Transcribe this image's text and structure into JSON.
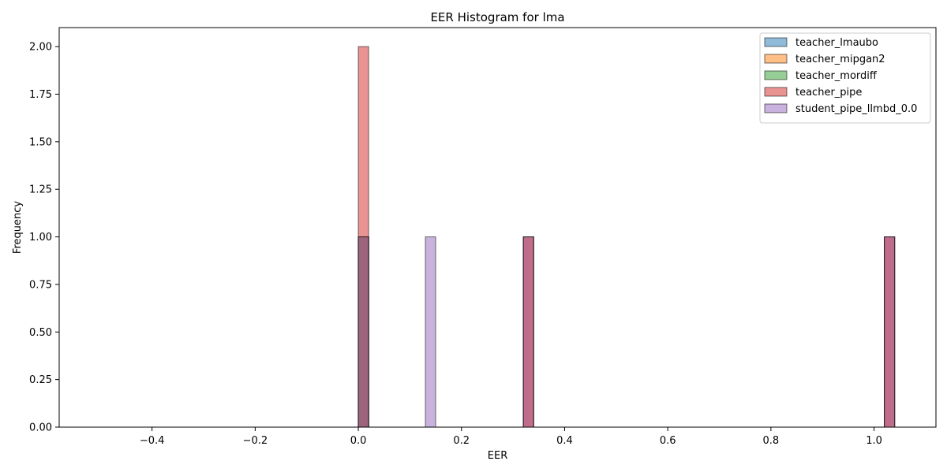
{
  "chart_data": {
    "type": "bar",
    "title": "EER Histogram for lma",
    "xlabel": "EER",
    "ylabel": "Frequency",
    "xlim": [
      -0.58,
      1.12
    ],
    "ylim": [
      0,
      2.1
    ],
    "xticks": [
      -0.4,
      -0.2,
      0.0,
      0.2,
      0.4,
      0.6,
      0.8,
      1.0
    ],
    "xtick_labels": [
      "−0.4",
      "−0.2",
      "0.0",
      "0.2",
      "0.4",
      "0.6",
      "0.8",
      "1.0"
    ],
    "yticks": [
      0,
      0.25,
      0.5,
      0.75,
      1.0,
      1.25,
      1.5,
      1.75,
      2.0
    ],
    "ytick_labels": [
      "0.00",
      "0.25",
      "0.50",
      "0.75",
      "1.00",
      "1.25",
      "1.50",
      "1.75",
      "2.00"
    ],
    "grid": false,
    "legend_position": "top-right",
    "series": [
      {
        "name": "teacher_lmaubo",
        "color": "#1f77b4",
        "bars": [
          {
            "x0": 0.0,
            "x1": 0.02,
            "height": 1
          }
        ]
      },
      {
        "name": "teacher_mipgan2",
        "color": "#ff7f0e",
        "bars": [
          {
            "x0": 0.0,
            "x1": 0.02,
            "height": 1
          },
          {
            "x0": 0.32,
            "x1": 0.34,
            "height": 1
          },
          {
            "x0": 1.02,
            "x1": 1.04,
            "height": 1
          }
        ]
      },
      {
        "name": "teacher_mordiff",
        "color": "#2ca02c",
        "bars": [
          {
            "x0": 0.0,
            "x1": 0.02,
            "height": 1
          }
        ]
      },
      {
        "name": "teacher_pipe",
        "color": "#d62728",
        "bars": [
          {
            "x0": 0.0,
            "x1": 0.02,
            "height": 2
          },
          {
            "x0": 0.32,
            "x1": 0.34,
            "height": 1
          },
          {
            "x0": 1.02,
            "x1": 1.04,
            "height": 1
          }
        ]
      },
      {
        "name": "student_pipe_llmbd_0.0",
        "color": "#9467bd",
        "bars": [
          {
            "x0": 0.0,
            "x1": 0.02,
            "height": 1
          },
          {
            "x0": 0.13,
            "x1": 0.15,
            "height": 1
          },
          {
            "x0": 0.32,
            "x1": 0.34,
            "height": 1
          },
          {
            "x0": 1.02,
            "x1": 1.04,
            "height": 1
          }
        ]
      }
    ],
    "zero_baselines": [
      {
        "x0": -0.5,
        "x1": 0.5
      },
      {
        "x0": 0.0,
        "x1": 1.04
      }
    ]
  }
}
